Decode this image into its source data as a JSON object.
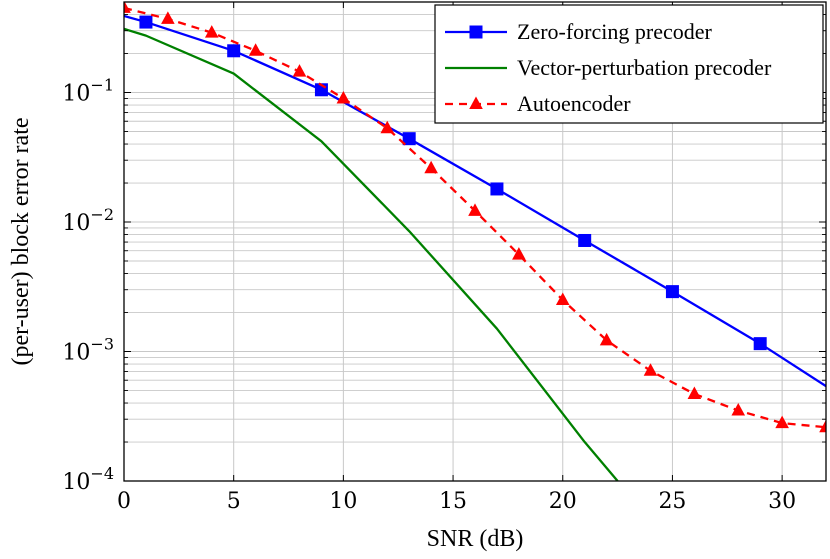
{
  "chart_data": {
    "type": "line",
    "title": "",
    "xlabel": "SNR (dB)",
    "ylabel": "(per-user) block error rate",
    "yscale": "log",
    "xlim": [
      0,
      32
    ],
    "ylim": [
      0.0001,
      0.5
    ],
    "xticks": [
      0,
      5,
      10,
      15,
      20,
      25,
      30
    ],
    "yticks": [
      {
        "value": 0.1,
        "base": "10",
        "exp": "−1"
      },
      {
        "value": 0.01,
        "base": "10",
        "exp": "−2"
      },
      {
        "value": 0.001,
        "base": "10",
        "exp": "−3"
      },
      {
        "value": 0.0001,
        "base": "10",
        "exp": "−4"
      }
    ],
    "grid": true,
    "legend_position": "top-right",
    "series": [
      {
        "name": "Zero-forcing precoder",
        "color": "#0000ff",
        "line": "solid",
        "marker": "square",
        "x": [
          0,
          1,
          5,
          9,
          13,
          17,
          21,
          25,
          29,
          32
        ],
        "y": [
          0.39,
          0.35,
          0.21,
          0.105,
          0.044,
          0.018,
          0.0072,
          0.0029,
          0.00115,
          0.00054
        ],
        "marker_indices": [
          1,
          2,
          3,
          4,
          5,
          6,
          7,
          8
        ]
      },
      {
        "name": "Vector-perturbation precoder",
        "color": "#008000",
        "line": "solid",
        "marker": "none",
        "x": [
          0,
          1,
          5,
          9,
          13,
          17,
          21,
          22.5
        ],
        "y": [
          0.31,
          0.275,
          0.14,
          0.042,
          0.0085,
          0.0015,
          0.0002,
          0.0001
        ],
        "marker_indices": []
      },
      {
        "name": "Autoencoder",
        "color": "#ff0000",
        "line": "dashed",
        "marker": "triangle",
        "x": [
          0,
          2,
          4,
          6,
          8,
          10,
          12,
          14,
          16,
          18,
          20,
          22,
          24,
          26,
          28,
          30,
          32
        ],
        "y": [
          0.45,
          0.37,
          0.29,
          0.21,
          0.145,
          0.09,
          0.053,
          0.026,
          0.0122,
          0.0056,
          0.0025,
          0.00122,
          0.00071,
          0.00047,
          0.00035,
          0.00028,
          0.00026
        ],
        "marker_indices": [
          0,
          1,
          2,
          3,
          4,
          5,
          6,
          7,
          8,
          9,
          10,
          11,
          12,
          13,
          14,
          15,
          16
        ]
      }
    ]
  }
}
